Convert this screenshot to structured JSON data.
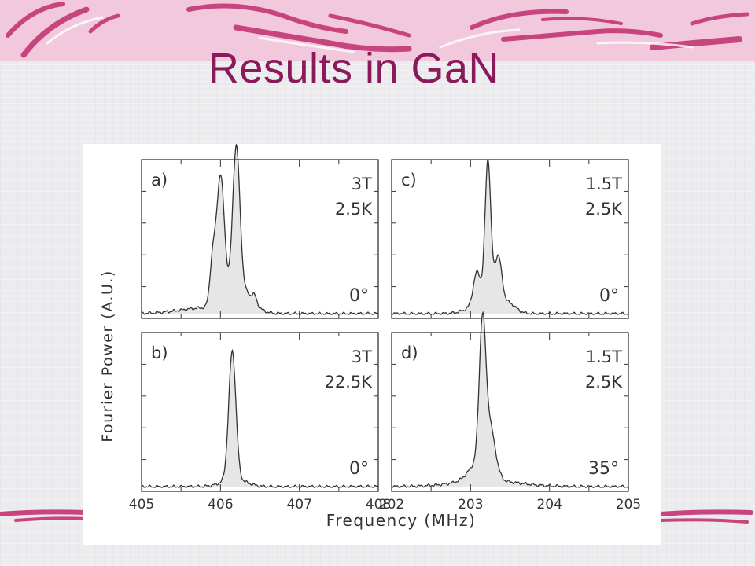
{
  "slide": {
    "title": "Results in GaN"
  },
  "chart_data": {
    "type": "line",
    "xlabel": "Frequency (MHz)",
    "ylabel": "Fourier Power (A.U.)",
    "panels": [
      {
        "id": "a",
        "label": "a)",
        "field": "3T",
        "temperature": "2.5K",
        "angle": "0°",
        "xlim": [
          405,
          408
        ],
        "x_ticks": [
          "405",
          "406",
          "407",
          "408"
        ],
        "peaks": [
          {
            "x": 406.0,
            "h": 0.84,
            "w": 0.05
          },
          {
            "x": 406.2,
            "h": 0.94,
            "w": 0.045
          },
          {
            "x": 406.25,
            "h": 0.15,
            "w": 0.14
          },
          {
            "x": 405.9,
            "h": 0.28,
            "w": 0.035
          },
          {
            "x": 406.43,
            "h": 0.05,
            "w": 0.03
          },
          {
            "x": 405.85,
            "h": 0.04,
            "w": 0.35
          }
        ]
      },
      {
        "id": "b",
        "label": "b)",
        "field": "3T",
        "temperature": "22.5K",
        "angle": "0°",
        "xlim": [
          405,
          408
        ],
        "x_ticks": [
          "405",
          "406",
          "407",
          "408"
        ],
        "peaks": [
          {
            "x": 406.15,
            "h": 0.84,
            "w": 0.045
          },
          {
            "x": 406.17,
            "h": 0.05,
            "w": 0.15
          }
        ]
      },
      {
        "id": "c",
        "label": "c)",
        "field": "1.5T",
        "temperature": "2.5K",
        "angle": "0°",
        "xlim": [
          202,
          205
        ],
        "x_ticks": [
          "202",
          "203",
          "204",
          "205"
        ],
        "peaks": [
          {
            "x": 203.22,
            "h": 0.91,
            "w": 0.036
          },
          {
            "x": 203.35,
            "h": 0.3,
            "w": 0.045
          },
          {
            "x": 203.08,
            "h": 0.2,
            "w": 0.045
          },
          {
            "x": 203.22,
            "h": 0.1,
            "w": 0.18
          },
          {
            "x": 203.5,
            "h": 0.04,
            "w": 0.08
          }
        ]
      },
      {
        "id": "d",
        "label": "d)",
        "field": "1.5T",
        "temperature": "2.5K",
        "angle": "35°",
        "xlim": [
          202,
          205
        ],
        "x_ticks": [
          "202",
          "203",
          "204",
          "205"
        ],
        "peaks": [
          {
            "x": 203.15,
            "h": 0.85,
            "w": 0.04
          },
          {
            "x": 203.24,
            "h": 0.32,
            "w": 0.07
          },
          {
            "x": 203.1,
            "h": 0.12,
            "w": 0.12
          },
          {
            "x": 203.2,
            "h": 0.04,
            "w": 0.4
          }
        ]
      }
    ],
    "grid": false,
    "legend": "none"
  }
}
